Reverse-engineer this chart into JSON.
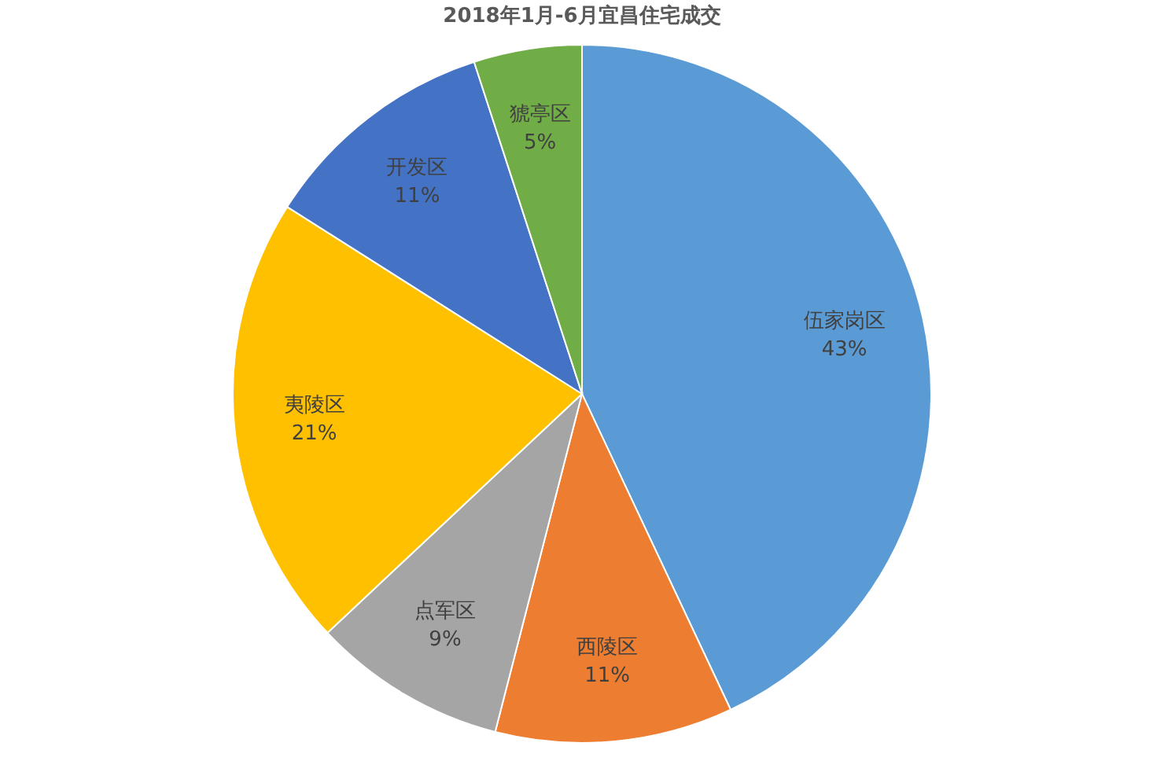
{
  "chart_data": {
    "type": "pie",
    "title": "2018年1月-6月宜昌住宅成交",
    "categories": [
      "伍家岗区",
      "西陵区",
      "点军区",
      "夷陵区",
      "开发区",
      "猇亭区"
    ],
    "values": [
      43,
      11,
      9,
      21,
      11,
      5
    ],
    "value_labels": [
      "43%",
      "11%",
      "9%",
      "21%",
      "11%",
      "5%"
    ],
    "colors": [
      "#5b9bd5",
      "#ed7d31",
      "#a5a5a5",
      "#ffc000",
      "#4472c4",
      "#70ad47"
    ]
  }
}
